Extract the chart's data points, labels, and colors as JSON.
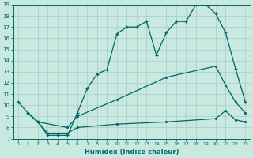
{
  "xlabel": "Humidex (Indice chaleur)",
  "bg_color": "#c8e8e0",
  "grid_color": "#a8ccc8",
  "line_color": "#006868",
  "xlim": [
    -0.5,
    23.5
  ],
  "ylim": [
    7,
    19
  ],
  "xticks": [
    0,
    1,
    2,
    3,
    4,
    5,
    6,
    7,
    8,
    9,
    10,
    11,
    12,
    13,
    14,
    15,
    16,
    17,
    18,
    19,
    20,
    21,
    22,
    23
  ],
  "yticks": [
    7,
    8,
    9,
    10,
    11,
    12,
    13,
    14,
    15,
    16,
    17,
    18,
    19
  ],
  "line1_x": [
    0,
    1,
    2,
    3,
    4,
    5,
    6,
    7,
    8,
    9,
    10,
    11,
    12,
    13,
    14,
    15,
    16,
    17,
    18,
    19,
    20,
    21,
    22,
    23
  ],
  "line1_y": [
    10.3,
    9.3,
    8.5,
    7.3,
    7.3,
    7.3,
    9.3,
    11.5,
    12.8,
    13.2,
    16.4,
    17.0,
    17.0,
    17.5,
    14.5,
    16.5,
    17.5,
    17.5,
    19.0,
    19.0,
    18.2,
    16.5,
    13.3,
    10.3
  ],
  "line2_x": [
    1,
    2,
    5,
    6,
    10,
    15,
    20,
    21,
    22,
    23
  ],
  "line2_y": [
    9.3,
    8.5,
    8.0,
    9.0,
    10.5,
    12.5,
    13.5,
    11.8,
    10.3,
    9.3
  ],
  "line3_x": [
    1,
    2,
    3,
    4,
    5,
    6,
    10,
    15,
    20,
    21,
    22,
    23
  ],
  "line3_y": [
    9.3,
    8.5,
    7.5,
    7.5,
    7.5,
    8.0,
    8.3,
    8.5,
    8.8,
    9.5,
    8.7,
    8.5
  ]
}
